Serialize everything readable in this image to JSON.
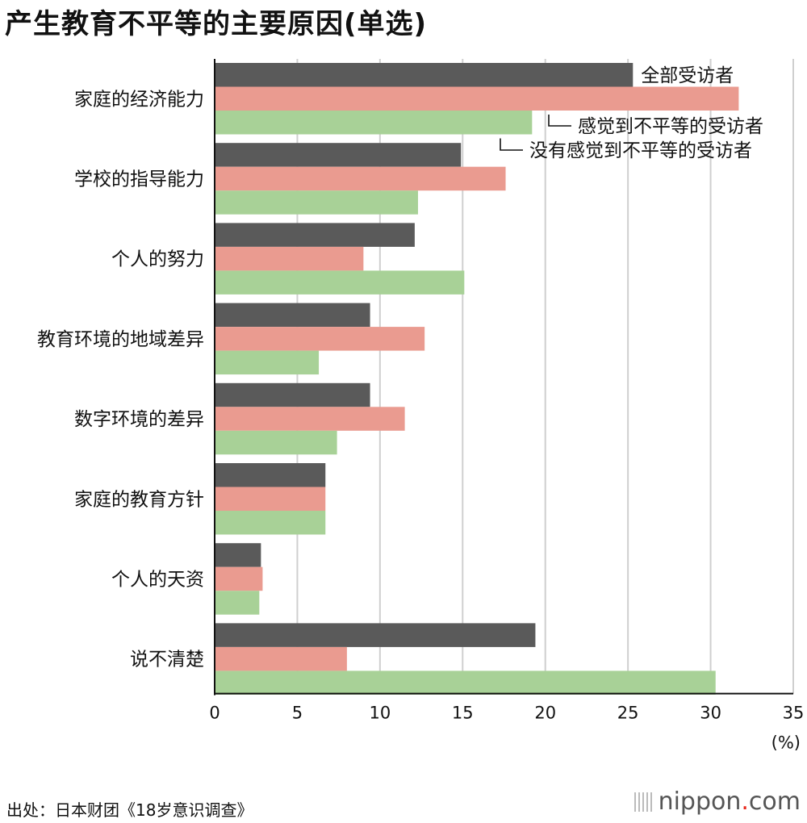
{
  "title": "产生教育不平等的主要原因(单选)",
  "source": "出处：日本财团《18岁意识调查》",
  "logo": {
    "name": "nippon",
    "dot": ".",
    "suffix": "com"
  },
  "colors": {
    "all": "#5a5a5a",
    "felt": "#ea9b90",
    "not_felt": "#a8d197",
    "grid": "#cfcfcf",
    "axis": "#111111"
  },
  "chart_data": {
    "type": "bar",
    "orientation": "horizontal",
    "title": "产生教育不平等的主要原因(单选)",
    "categories": [
      "家庭的经济能力",
      "学校的指导能力",
      "个人的努力",
      "教育环境的地域差异",
      "数字环境的差异",
      "家庭的教育方针",
      "个人的天资",
      "说不清楚"
    ],
    "series": [
      {
        "name": "全部受访者",
        "values": [
          25.3,
          14.9,
          12.1,
          9.4,
          9.4,
          6.7,
          2.8,
          19.4
        ]
      },
      {
        "name": "感觉到不平等的受访者",
        "values": [
          31.7,
          17.6,
          9.0,
          12.7,
          11.5,
          6.7,
          2.9,
          8.0
        ]
      },
      {
        "name": "没有感觉到不平等的受访者",
        "values": [
          19.2,
          12.3,
          15.1,
          6.3,
          7.4,
          6.7,
          2.7,
          30.3
        ]
      }
    ],
    "xlim": [
      0,
      35
    ],
    "xticks": [
      0,
      5,
      10,
      15,
      20,
      25,
      30,
      35
    ],
    "xlabel": "(%)",
    "grid": true,
    "legend": "series labels attached to the first group of bars"
  }
}
